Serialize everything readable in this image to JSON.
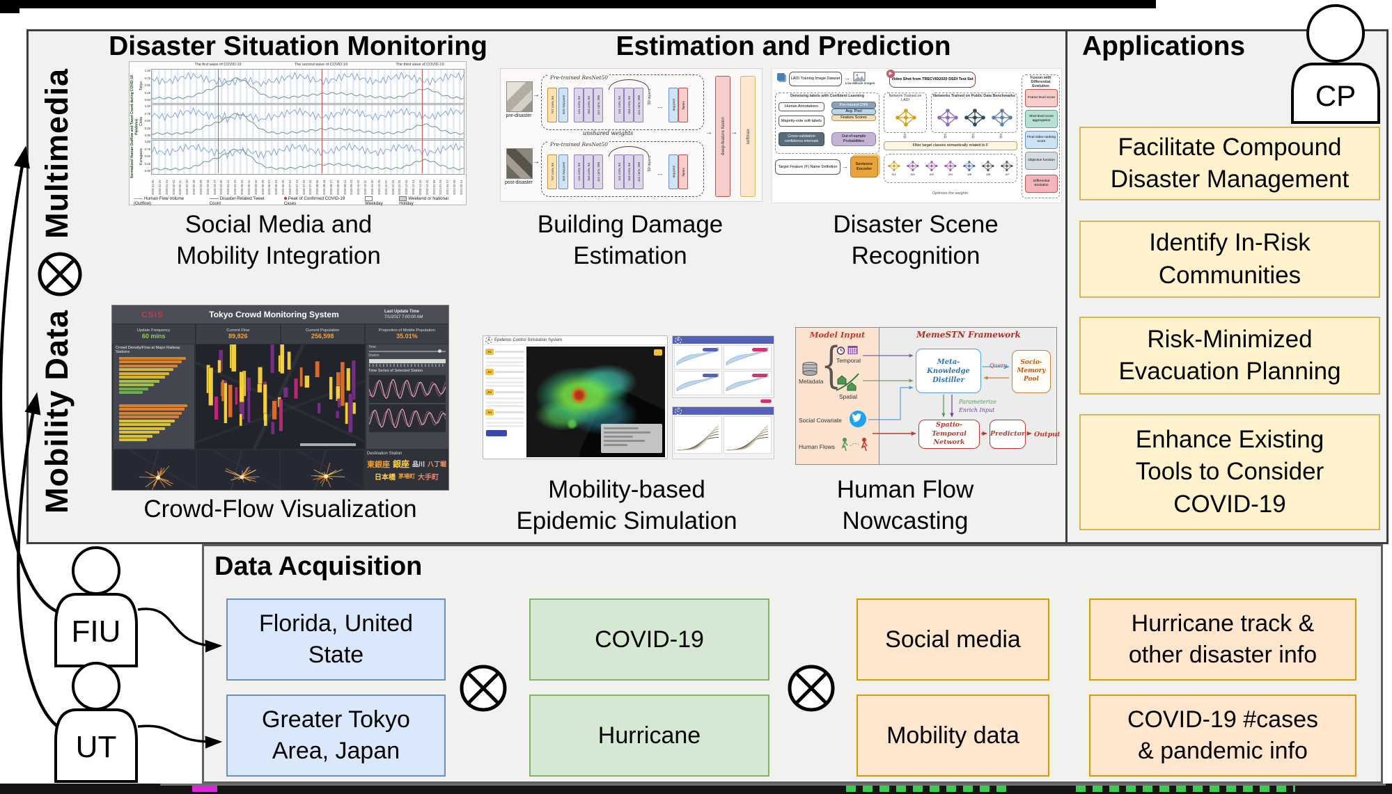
{
  "headings": {
    "monitoring": "Disaster Situation Monitoring",
    "estimation": "Estimation and Prediction",
    "applications": "Applications",
    "data_acquisition": "Data Acquisition"
  },
  "left_rail": {
    "top_label": "Multimedia",
    "bottom_label": "Mobility Data"
  },
  "actors": {
    "cp": "CP",
    "fiu": "FIU",
    "ut": "UT"
  },
  "captions": {
    "social": {
      "line1": "Social Media and",
      "line2": "Mobility Integration"
    },
    "crowd": {
      "line1": "Crowd-Flow Visualization"
    },
    "building": {
      "line1": "Building Damage",
      "line2": "Estimation"
    },
    "scene": {
      "line1": "Disaster Scene",
      "line2": "Recognition"
    },
    "epidemic": {
      "line1": "Mobility-based",
      "line2": "Epidemic Simulation"
    },
    "nowcast": {
      "line1": "Human Flow",
      "line2": "Nowcasting"
    }
  },
  "applications": {
    "boxes": [
      {
        "line1": "Facilitate Compound",
        "line2": "Disaster Management",
        "line3": ""
      },
      {
        "line1": "Identify In-Risk",
        "line2": "Communities",
        "line3": ""
      },
      {
        "line1": "Risk-Minimized",
        "line2": "Evacuation Planning",
        "line3": ""
      },
      {
        "line1": "Enhance Existing",
        "line2": "Tools to Consider",
        "line3": "COVID-19"
      }
    ]
  },
  "data_acquisition": {
    "regions": [
      {
        "line1": "Florida, United",
        "line2": "State"
      },
      {
        "line1": "Greater Tokyo",
        "line2": "Area, Japan"
      }
    ],
    "disasters": [
      "COVID-19",
      "Hurricane"
    ],
    "sources": [
      "Social media",
      "Mobility data"
    ],
    "info": [
      {
        "line1": "Hurricane track &",
        "line2": "other disaster info"
      },
      {
        "line1": "COVID-19 #cases",
        "line2": "& pandemic info"
      }
    ]
  },
  "figures": {
    "timeseries": {
      "ylabel": "Normalized Human Outflow and Tweet Count during COVID-19 Pandemic",
      "panels": [
        "Tokyo",
        "Chiba",
        "Kanagawa"
      ],
      "yticks": [
        "1.00",
        "0.75",
        "0.50",
        "0.25",
        "0.00"
      ],
      "annotations": [
        "The first wave of COVID-19",
        "The second wave of COVID-19",
        "The third wave of COVID-19"
      ],
      "x_start_date": "2020-01-06",
      "legend": [
        {
          "label": "Human Flow Volume (Outflow)"
        },
        {
          "label": "Disaster-Related Tweet Count"
        },
        {
          "label": "Peak of Confirmed COVID-19 Cases"
        },
        {
          "label": "Weekday"
        },
        {
          "label": "Weekend or National Holiday"
        }
      ]
    },
    "dashboard": {
      "logo": "CSIS",
      "title": "Tokyo Crowd Monitoring System",
      "update_label": "Last Update Time",
      "update_value": "7/1/2017 7:00:00 AM",
      "stats": [
        {
          "label": "Update Frequency",
          "value": "60 mins"
        },
        {
          "label": "Current Flow",
          "value": "89,826"
        },
        {
          "label": "Current Population",
          "value": "256,598"
        },
        {
          "label": "Proportion of Mobile Population",
          "value": "35.01%"
        }
      ],
      "left_panel_title": "Crowd Density/Flow at Major Railway Stations",
      "time_label": "Time",
      "station_label": "Station",
      "right_panel_title": "Time Series of Selected Station",
      "wordcloud_title": "Destination Station",
      "wordcloud": [
        "東銀座",
        "銀座",
        "品川",
        "八丁堀",
        "日本橋",
        "茅場町",
        "大手町"
      ]
    },
    "building": {
      "inputs": [
        "pre-disaster",
        "post-disaster"
      ],
      "branch_label": "Pre-trained ResNet50",
      "blocks": [
        "7x7 conv, 64",
        "3x3 max pool",
        "1x1 conv, 64",
        "3x3 conv, 64",
        "1x1 conv, 256"
      ],
      "layers_label": "50 layers",
      "pool_label": "avg pool",
      "flatten_label": "flatten",
      "unshared_label": "unshared weights",
      "fusion_label": "deep-feature fusion",
      "softmax_label": "softmax"
    },
    "scene": {
      "dataset": "LADI Training Image Dataset",
      "low_altitude": "Low-altitude images",
      "video": "Video Shot from TRECVID2020 DSDI Test Set",
      "denoising_title": "Denoising labels with Confident Learning",
      "denoise_boxes": [
        "Human Annotations",
        "Majority-vote soft-labels",
        "Cross-validation confidence intervals",
        "Out-of-sample Probabilities"
      ],
      "cnn_stack": [
        "Pre-trained CNN",
        "Avg. Pool",
        "Feature Scores"
      ],
      "net_ladi": "Network Trained on LADI",
      "net_public": "Networks Trained on Public Data Benchmarks",
      "filter": "Filter target classes semantically related to F",
      "target": "Target Feature (F) Name Definition",
      "encoder": "Sentence Encoder",
      "fusion_title": "Fusion with Differential Evolution",
      "fusion_steps": [
        "Frame-level score",
        "Shot-level score aggregation",
        "Final video ranking score",
        "Objective function",
        "Differential Evolution"
      ],
      "optimize": "Optimize the weights",
      "weights": [
        "w1",
        "w2",
        "w3",
        "w4",
        "w5",
        "w6",
        "w7"
      ]
    },
    "epidemic": {
      "window_title": "Epidemic Control Simulation System",
      "panel_a": "A",
      "panel_b": "B",
      "panel_c": "C",
      "buttons": [
        "A1",
        "A2",
        "A3",
        "A4"
      ]
    },
    "memestn": {
      "left_title": "Model Input",
      "right_title": "MemeSTN Framework",
      "metadata": "Metadata",
      "temporal": "Temporal",
      "spatial": "Spatial",
      "social": "Social Covariate",
      "flows": "Human Flows",
      "distiller": "Meta-Knowledge Distiller",
      "pool": "Socio-Memory Pool",
      "query": "Query",
      "parameterize": "Parameterize",
      "enrich": "Enrich Input",
      "stn": "Spatio-Temporal Network",
      "predictor": "Predictor",
      "output": "Output"
    }
  },
  "colors": {
    "yellow_fill": "#fff2cc",
    "yellow_stroke": "#d6b656",
    "blue_fill": "#dae8fc",
    "blue_stroke": "#6c8ebf",
    "green_fill": "#d5e8d4",
    "green_stroke": "#82b366",
    "orange_fill": "#ffe6cc",
    "orange_stroke": "#d79b00",
    "stat_green": "#8fd14f",
    "stat_orange": "#f2a33c"
  }
}
